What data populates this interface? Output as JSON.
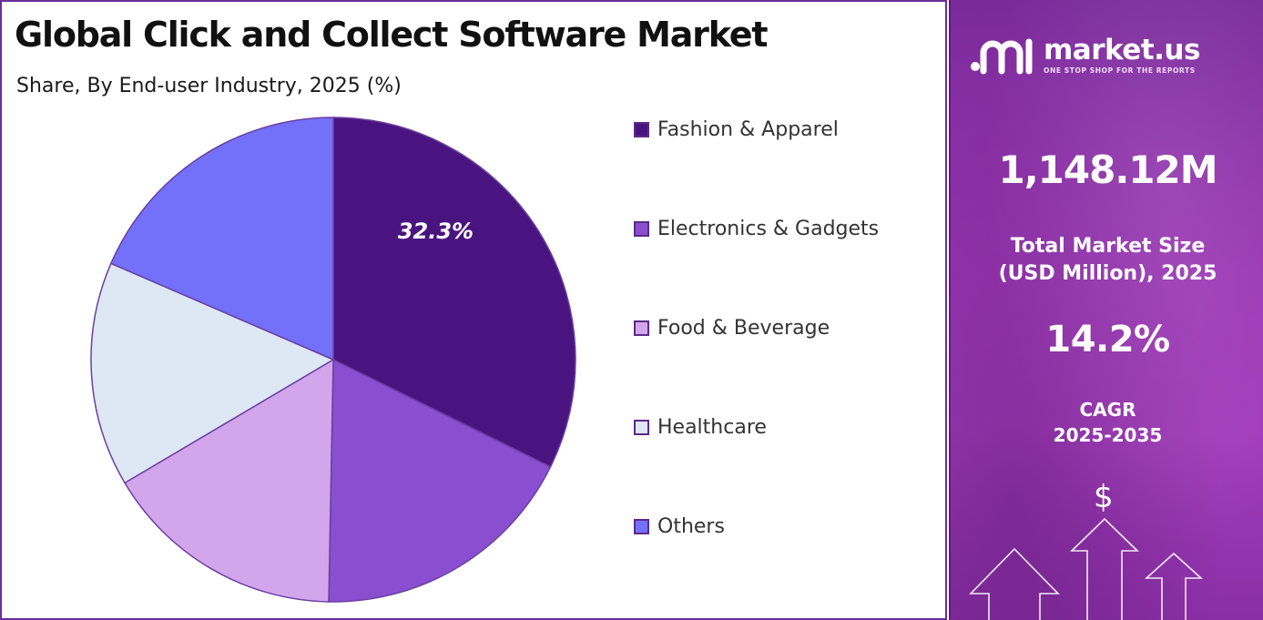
{
  "chart_data": {
    "type": "pie",
    "title": "Global Click and Collect Software Market",
    "subtitle": "Share, By End-user Industry, 2025 (%)",
    "slices": [
      {
        "label": "Fashion & Apparel",
        "value": 32.3,
        "color": "#4a1480",
        "data_label": "32.3%"
      },
      {
        "label": "Electronics & Gadgets",
        "value": 18.0,
        "color": "#8a4fd0"
      },
      {
        "label": "Food & Beverage",
        "value": 16.2,
        "color": "#d3a6ec"
      },
      {
        "label": "Healthcare",
        "value": 15.0,
        "color": "#dde8f4"
      },
      {
        "label": "Others",
        "value": 18.5,
        "color": "#7370fa"
      }
    ],
    "legend_position": "right"
  },
  "brand": {
    "name": "market.us",
    "tagline": "ONE STOP SHOP FOR THE REPORTS"
  },
  "stats": {
    "market_size_value": "1,148.12M",
    "market_size_label_line1": "Total Market Size",
    "market_size_label_line2": "(USD Million), 2025",
    "cagr_value": "14.2%",
    "cagr_label_line1": "CAGR",
    "cagr_label_line2": "2025-2035"
  },
  "decor": {
    "currency_symbol": "$",
    "icons": [
      "market-us-logo-icon",
      "dollar-icon",
      "up-arrow-icon"
    ]
  }
}
